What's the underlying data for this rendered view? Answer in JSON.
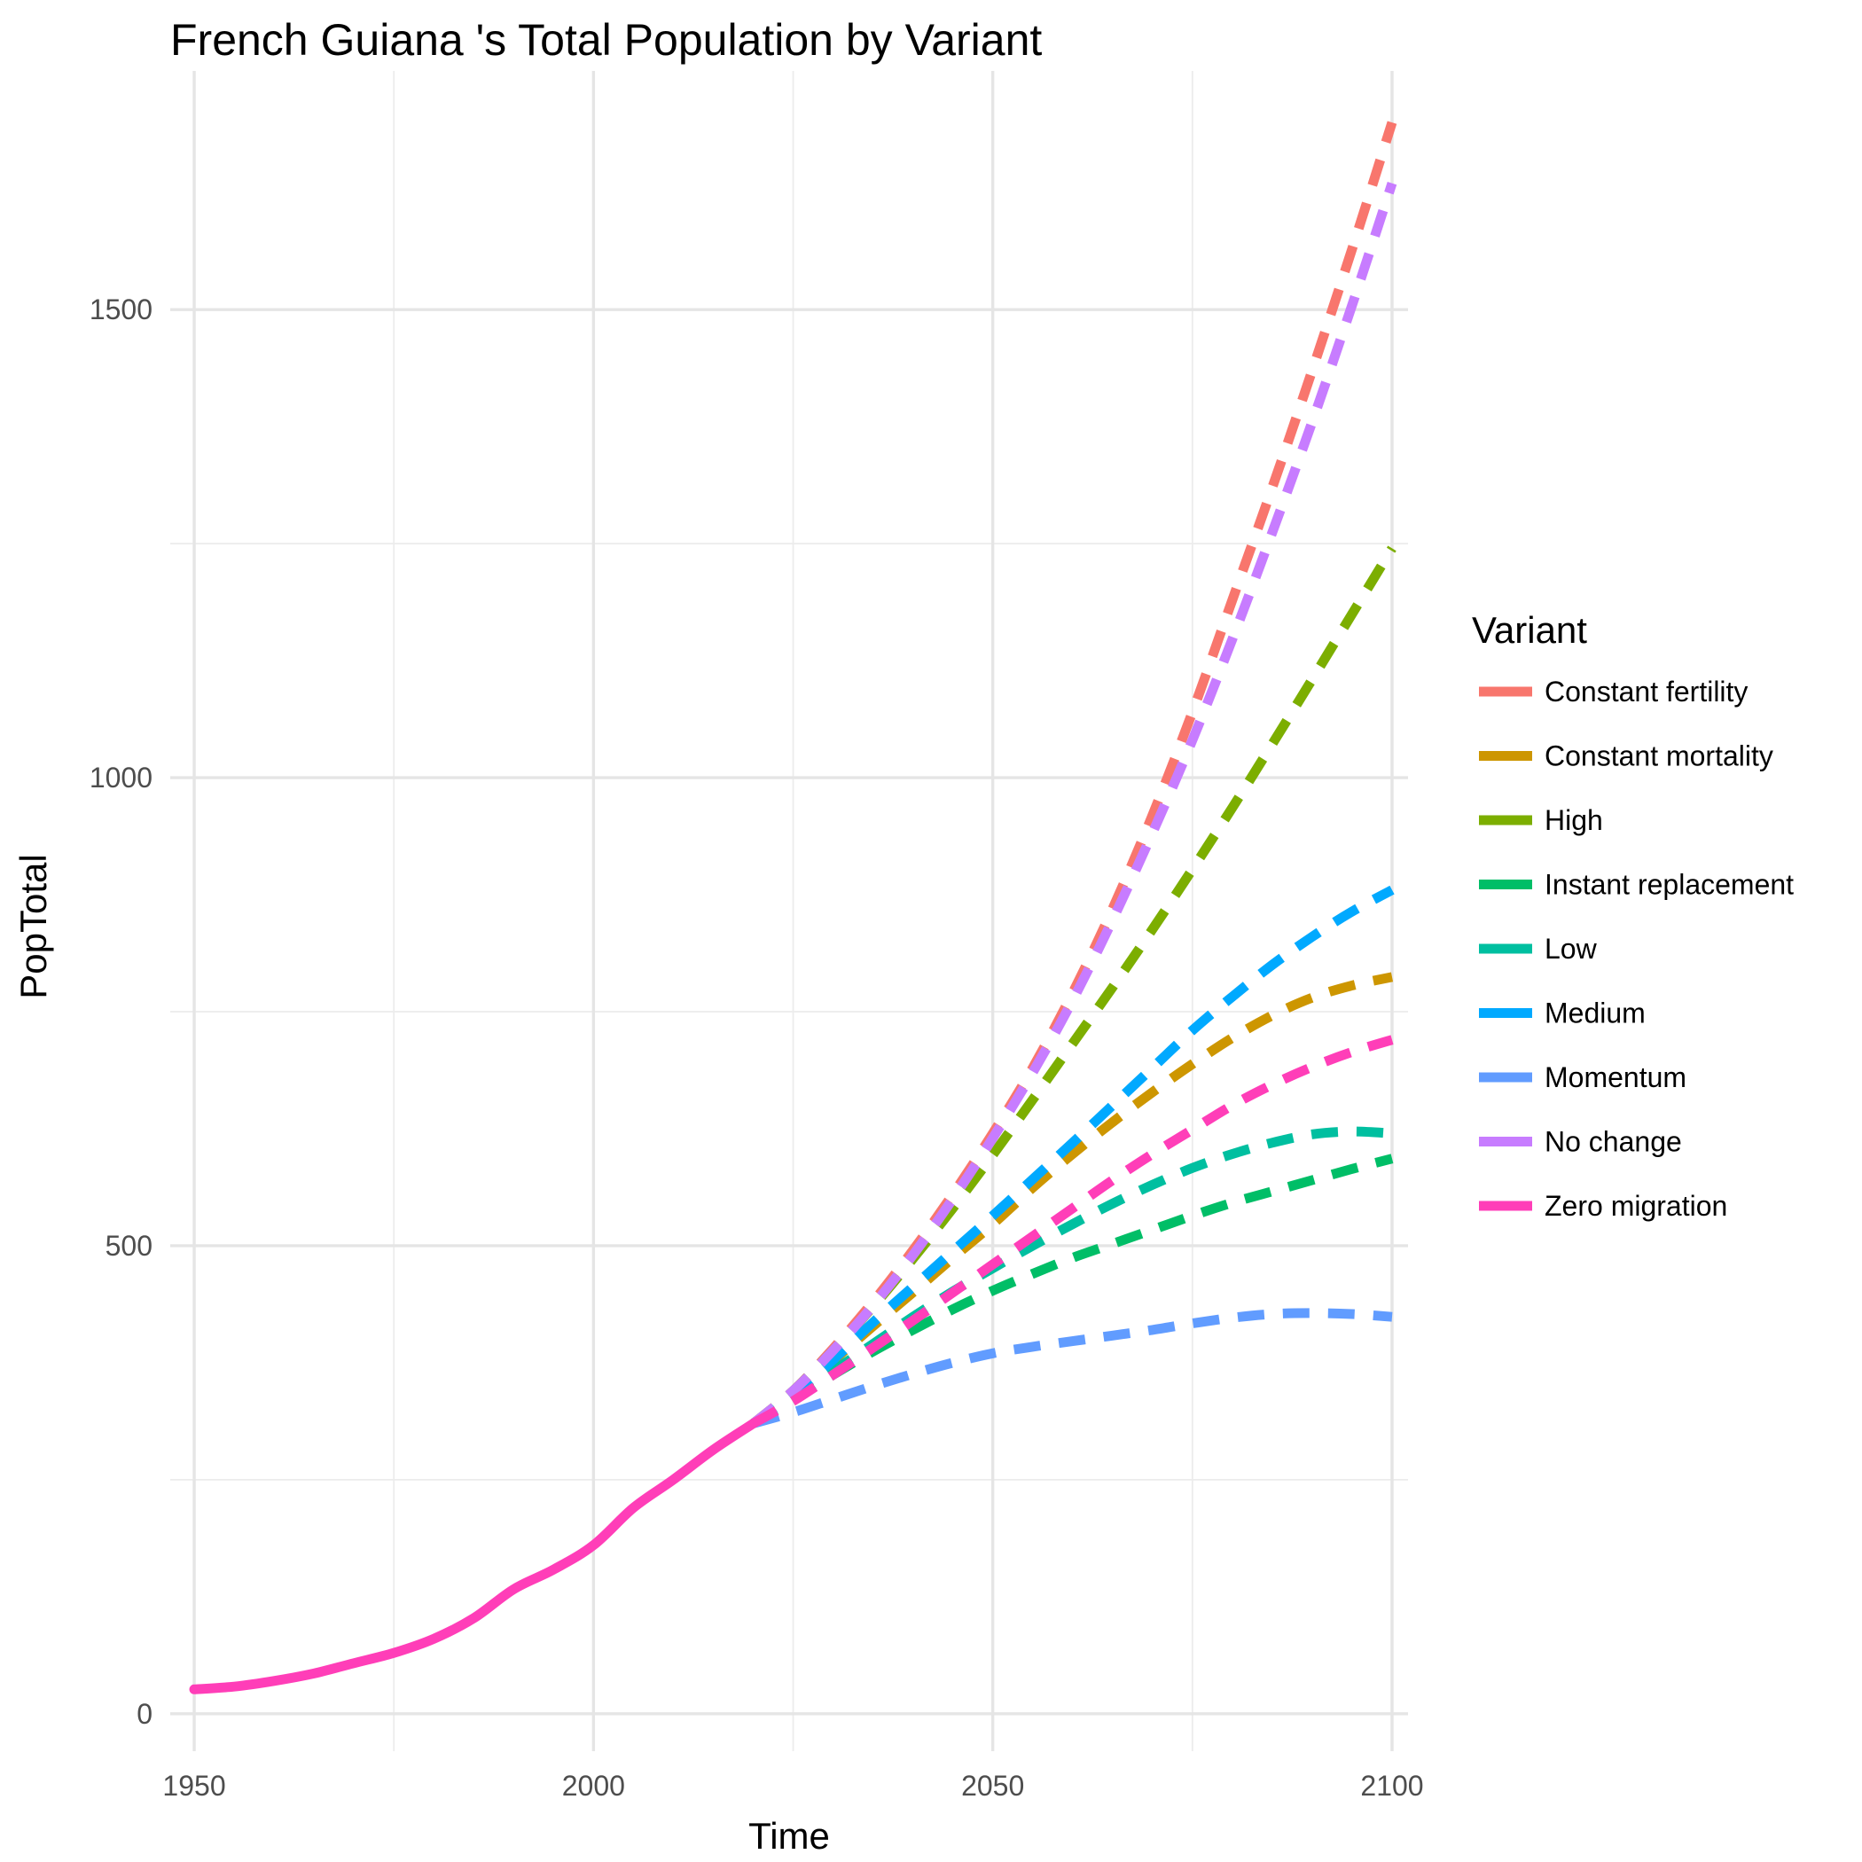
{
  "chart_data": {
    "type": "line",
    "title": "French Guiana 's Total Population by Variant",
    "xlabel": "Time",
    "ylabel": "PopTotal",
    "xlim": [
      1947,
      2102
    ],
    "ylim": [
      -40,
      1755
    ],
    "x_ticks": [
      1950,
      2000,
      2050,
      2100
    ],
    "y_ticks": [
      0,
      500,
      1000,
      1500
    ],
    "grid": true,
    "legend": {
      "title": "Variant",
      "position": "right"
    },
    "historical": {
      "name": "Zero migration",
      "color": "#FF3EB8",
      "x": [
        1950,
        1955,
        1960,
        1965,
        1970,
        1975,
        1980,
        1985,
        1990,
        1995,
        2000,
        2005,
        2010,
        2015,
        2020
      ],
      "y": [
        26,
        29,
        35,
        43,
        54,
        65,
        80,
        102,
        133,
        154,
        180,
        220,
        250,
        282,
        310
      ]
    },
    "x": [
      2020,
      2025,
      2030,
      2035,
      2040,
      2045,
      2050,
      2055,
      2060,
      2065,
      2070,
      2075,
      2080,
      2085,
      2090,
      2095,
      2100
    ],
    "series": [
      {
        "name": "Constant fertility",
        "color": "#F8766D",
        "values": [
          310,
          345,
          390,
          440,
          495,
          555,
          620,
          690,
          770,
          860,
          960,
          1070,
          1190,
          1310,
          1435,
          1565,
          1700
        ]
      },
      {
        "name": "Constant mortality",
        "color": "#CD9600",
        "values": [
          310,
          340,
          377,
          414,
          450,
          487,
          523,
          562,
          598,
          632,
          664,
          694,
          722,
          746,
          765,
          778,
          787
        ]
      },
      {
        "name": "High",
        "color": "#7CAE00",
        "values": [
          310,
          345,
          388,
          435,
          486,
          540,
          597,
          656,
          716,
          776,
          838,
          902,
          968,
          1036,
          1105,
          1175,
          1245
        ]
      },
      {
        "name": "Instant replacement",
        "color": "#00BE67",
        "values": [
          310,
          335,
          362,
          387,
          410,
          432,
          452,
          470,
          487,
          502,
          517,
          532,
          546,
          558,
          570,
          582,
          593
        ]
      },
      {
        "name": "Low",
        "color": "#00BFA0",
        "values": [
          310,
          337,
          366,
          395,
          424,
          451,
          476,
          500,
          523,
          545,
          565,
          583,
          598,
          610,
          619,
          622,
          620
        ]
      },
      {
        "name": "Medium",
        "color": "#00A9FF",
        "values": [
          310,
          341,
          378,
          418,
          456,
          494,
          532,
          571,
          610,
          650,
          690,
          730,
          766,
          800,
          830,
          857,
          880
        ]
      },
      {
        "name": "Momentum",
        "color": "#619CFF",
        "values": [
          310,
          322,
          336,
          350,
          363,
          375,
          385,
          392,
          398,
          404,
          410,
          417,
          423,
          427,
          428,
          427,
          424
        ]
      },
      {
        "name": "No change",
        "color": "#C77CFF",
        "values": [
          310,
          345,
          388,
          436,
          490,
          550,
          615,
          685,
          762,
          848,
          941,
          1040,
          1148,
          1262,
          1380,
          1505,
          1635
        ]
      },
      {
        "name": "Zero migration",
        "color": "#FF3EB8",
        "values": [
          310,
          334,
          362,
          391,
          420,
          450,
          480,
          510,
          540,
          570,
          598,
          624,
          650,
          672,
          691,
          707,
          720
        ]
      }
    ]
  }
}
